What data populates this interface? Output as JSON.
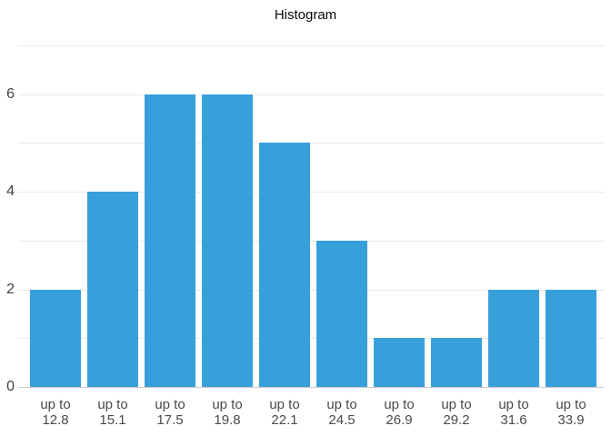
{
  "chart_data": {
    "type": "bar",
    "title": "Histogram",
    "categories": [
      "up to 12.8",
      "up to 15.1",
      "up to 17.5",
      "up to 19.8",
      "up to 22.1",
      "up to 24.5",
      "up to 26.9",
      "up to 29.2",
      "up to 31.6",
      "up to 33.9"
    ],
    "category_prefix": "up to",
    "category_bounds": [
      "12.8",
      "15.1",
      "17.5",
      "19.8",
      "22.1",
      "24.5",
      "26.9",
      "29.2",
      "31.6",
      "33.9"
    ],
    "values": [
      2,
      4,
      6,
      6,
      5,
      3,
      1,
      1,
      2,
      2
    ],
    "xlabel": "",
    "ylabel": "",
    "ylim": [
      0,
      7
    ],
    "ytick_values": [
      0,
      2,
      4,
      6
    ],
    "ytick_labels": [
      "0",
      "2",
      "4",
      "6"
    ],
    "gridline_levels": [
      1,
      2,
      3,
      4,
      5,
      6,
      7
    ],
    "grid": true,
    "legend_position": "none"
  },
  "colors": {
    "bar": "#37a0db",
    "gridline": "#e9e9e9",
    "axis_line": "#cccccc",
    "ytick_text": "#404040",
    "xtick_text": "#4a4a4a",
    "title_text": "#0a0a0a"
  }
}
